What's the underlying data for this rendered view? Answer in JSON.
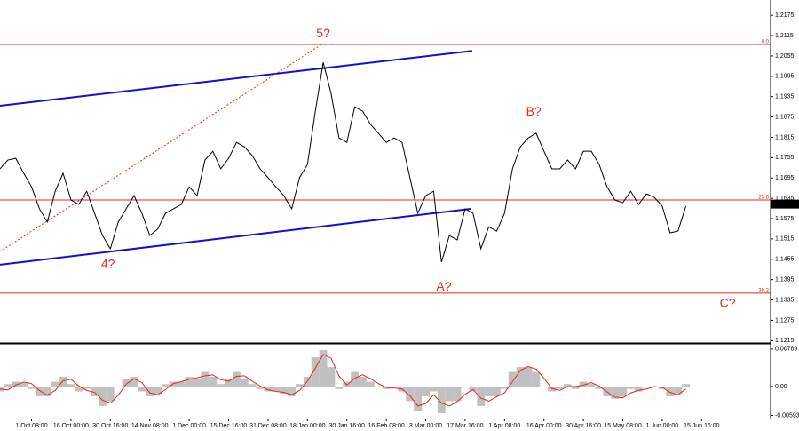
{
  "chart_data": [
    {
      "type": "line",
      "color": "#000000",
      "ylim": [
        1.1208,
        1.222
      ],
      "yticks": [
        1.2175,
        1.2115,
        1.2055,
        1.1995,
        1.1935,
        1.1875,
        1.1815,
        1.1755,
        1.1695,
        1.1635,
        1.1575,
        1.1515,
        1.1455,
        1.1395,
        1.1335,
        1.1275,
        1.1215
      ],
      "values": [
        1.1722,
        1.1748,
        1.1753,
        1.1709,
        1.1669,
        1.1604,
        1.1565,
        1.1656,
        1.1709,
        1.163,
        1.1617,
        1.1656,
        1.1591,
        1.1525,
        1.1486,
        1.1565,
        1.1604,
        1.1643,
        1.1591,
        1.1525,
        1.1544,
        1.1591,
        1.1604,
        1.1617,
        1.1669,
        1.1643,
        1.1748,
        1.1774,
        1.1722,
        1.1753,
        1.18,
        1.1787,
        1.1761,
        1.1722,
        1.1696,
        1.1669,
        1.1643,
        1.1604,
        1.1696,
        1.1735,
        1.1892,
        1.2036,
        1.1944,
        1.1813,
        1.18,
        1.1905,
        1.1892,
        1.1853,
        1.1827,
        1.18,
        1.1813,
        1.18,
        1.1696,
        1.1591,
        1.1643,
        1.1656,
        1.1447,
        1.1525,
        1.1512,
        1.1604,
        1.1591,
        1.1486,
        1.1551,
        1.1538,
        1.1591,
        1.1722,
        1.1787,
        1.1813,
        1.1827,
        1.1774,
        1.1722,
        1.1722,
        1.1748,
        1.1722,
        1.1774,
        1.1774,
        1.1735,
        1.1669,
        1.163,
        1.1622,
        1.1656,
        1.1617,
        1.1648,
        1.1638,
        1.1612,
        1.1533,
        1.1538,
        1.1612,
        null,
        null
      ],
      "last_price": 1.1618,
      "fib_levels": [
        {
          "label": "0.0",
          "value": 1.2089
        },
        {
          "label": "23.6",
          "value": 1.163
        },
        {
          "label": "38.2",
          "value": 1.1355
        }
      ],
      "fib_color": "#e8261b",
      "trendlines": [
        {
          "color": "#1010d0",
          "style": "solid",
          "x": [
            0,
            59.9
          ],
          "y": [
            1.1908,
            1.207
          ]
        },
        {
          "color": "#1010d0",
          "style": "solid",
          "x": [
            0,
            59.7
          ],
          "y": [
            1.1439,
            1.1604
          ]
        },
        {
          "color": "#e8261b",
          "style": "dotted",
          "x": [
            0,
            40.8
          ],
          "y": [
            1.1478,
            1.2089
          ]
        }
      ],
      "annotations": [
        {
          "text": "5?",
          "x": 41,
          "y": 1.212
        },
        {
          "text": "4?",
          "x": 13.7,
          "y": 1.1439
        },
        {
          "text": "A?",
          "x": 56.3,
          "y": 1.1373
        },
        {
          "text": "B?",
          "x": 67.7,
          "y": 1.1889
        },
        {
          "text": "C?",
          "x": 92.3,
          "y": 1.1324
        }
      ]
    },
    {
      "type": "bar",
      "color": "#c0c0c0",
      "signal_color": "#e8261b",
      "ylim": [
        -0.0064,
        0.0084
      ],
      "yticks": [
        0.00769,
        {
          "value": 0,
          "label": "0.00"
        },
        -0.00593
      ],
      "categories": [
        null,
        null,
        null,
        null,
        "1 Oct 08:00",
        null,
        null,
        null,
        null,
        "16 Oct 00:00",
        null,
        null,
        null,
        null,
        "30 Oct 16:00",
        null,
        null,
        null,
        null,
        "14 Nov 08:00",
        null,
        null,
        null,
        null,
        "1 Dec 00:00",
        null,
        null,
        null,
        null,
        "15 Dec 16:00",
        null,
        null,
        null,
        null,
        "31 Dec 08:00",
        null,
        null,
        null,
        null,
        "18 Jan 00:00",
        null,
        null,
        null,
        null,
        "30 Jan 16:00",
        null,
        null,
        null,
        null,
        "16 Feb 08:00",
        null,
        null,
        null,
        null,
        "3 Mar 00:00",
        null,
        null,
        null,
        null,
        "17 Mar 16:00",
        null,
        null,
        null,
        null,
        "1 Apr 08:00",
        null,
        null,
        null,
        null,
        "16 Apr 00:00",
        null,
        null,
        null,
        null,
        "30 Apr 16:00",
        null,
        null,
        null,
        null,
        "15 May 08:00",
        null,
        null,
        null,
        null,
        "1 Jun 00:00",
        null,
        null,
        null,
        null,
        "15 Jun 16:00"
      ],
      "values": [
        -0.001,
        0.0005,
        0.001,
        0.0008,
        -0.0005,
        -0.002,
        -0.002,
        0.001,
        0.002,
        0.0005,
        -0.001,
        -0.0005,
        -0.002,
        -0.004,
        -0.003,
        0,
        0.0015,
        0.002,
        -0.001,
        -0.002,
        -0.0015,
        0.0005,
        0.001,
        0.001,
        0.002,
        0.0015,
        0.003,
        0.002,
        0.0005,
        0.0015,
        0.003,
        0.0015,
        0.0005,
        -0.0005,
        -0.001,
        -0.001,
        -0.0015,
        -0.002,
        0.0005,
        0.002,
        0.006,
        0.0075,
        0.004,
        -0.0005,
        0.001,
        0.003,
        0.002,
        0.001,
        0,
        -0.0005,
        0,
        -0.001,
        -0.003,
        -0.005,
        -0.002,
        -0.001,
        -0.0055,
        -0.003,
        -0.003,
        0,
        -0.001,
        -0.004,
        -0.002,
        -0.002,
        -0.0005,
        0.003,
        0.004,
        0.004,
        0.003,
        0,
        -0.001,
        -0.0005,
        0.0005,
        -0.0005,
        0.001,
        0.0005,
        -0.0005,
        -0.002,
        -0.0025,
        -0.002,
        -0.0005,
        -0.001,
        0,
        0,
        -0.0005,
        -0.002,
        -0.0015,
        0.0005,
        null,
        null
      ],
      "signal_values": [
        -0.0005,
        -0.0007,
        0.0003,
        0.0009,
        0.0006,
        -0.0008,
        -0.0018,
        -0.0008,
        0.0012,
        0.0015,
        0.0001,
        -0.0008,
        -0.0012,
        -0.0028,
        -0.0034,
        -0.0018,
        0.0005,
        0.0016,
        0.0008,
        -0.0013,
        -0.0017,
        -0.0006,
        0.0006,
        0.001,
        0.0015,
        0.0018,
        0.0022,
        0.0024,
        0.0014,
        0.0011,
        0.0021,
        0.0022,
        0.0011,
        0.0001,
        -0.0007,
        -0.001,
        -0.0012,
        -0.0017,
        -0.0008,
        0.0011,
        0.0038,
        0.0066,
        0.0058,
        0.0022,
        0.0003,
        0.0017,
        0.0024,
        0.0016,
        0.0006,
        -0.0002,
        -0.0003,
        -0.0005,
        -0.0019,
        -0.004,
        -0.0035,
        -0.0017,
        -0.0034,
        -0.004,
        -0.0031,
        -0.0016,
        -0.0006,
        -0.0024,
        -0.003,
        -0.0021,
        -0.0013,
        0.001,
        0.0033,
        0.0041,
        0.0036,
        0.0017,
        -0.0004,
        -0.0008,
        0,
        0,
        0.0003,
        0.0008,
        0.0001,
        -0.0011,
        -0.0022,
        -0.0023,
        -0.0013,
        -0.0008,
        -0.0005,
        0,
        -0.0002,
        -0.0012,
        -0.0017,
        -0.0005,
        null,
        null
      ]
    }
  ]
}
